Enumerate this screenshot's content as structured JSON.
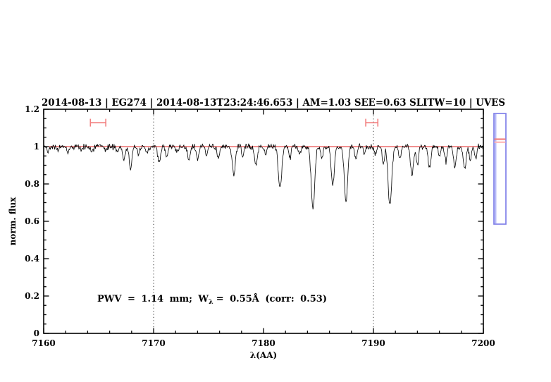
{
  "header": {
    "title": "2014-08-13 | EG274 | 2014-08-13T23:24:46.653 | AM=1.03  SEE=0.63  SLITW=10 | UVES",
    "color": "#1717cf"
  },
  "annotation": {
    "part1": "PWV = 1.14 mm; W",
    "sub": "λ",
    "part2": "= 0.55Å (corr: 0.53)",
    "color": "#1717cf"
  },
  "chart_data": {
    "type": "line",
    "title": "2014-08-13 | EG274 | 2014-08-13T23:24:46.653 | AM=1.03  SEE=0.63  SLITW=10 | UVES",
    "xlabel": "λ(AA)",
    "ylabel": "norm. flux",
    "xlim": [
      7160,
      7200
    ],
    "ylim": [
      0,
      1.2
    ],
    "x_tick_labels": [
      "7160",
      "7170",
      "7180",
      "7190",
      "7200"
    ],
    "x_major_ticks": [
      7160,
      7170,
      7180,
      7190,
      7200
    ],
    "x_minor_step": 2,
    "y_tick_labels": [
      "0",
      "0.2",
      "0.4",
      "0.6",
      "0.8",
      "1",
      "1.2"
    ],
    "y_major_ticks": [
      0,
      0.2,
      0.4,
      0.6,
      0.8,
      1.0,
      1.2
    ],
    "y_minor_step": 0.05,
    "grid": "off",
    "legend": "none",
    "continuum_level": 1.0,
    "continuum_color": "#e32222",
    "spectrum_color": "#000000",
    "guide_color": "#333333",
    "marker_color": "#f28080",
    "noise_sigma": 0.0075,
    "noise_seed": 42,
    "sample_step": 0.05,
    "dotted_guides_x": [
      7170,
      7190
    ],
    "range_markers": [
      {
        "x1": 7164.25,
        "x2": 7165.65,
        "y": 1.128
      },
      {
        "x1": 7189.3,
        "x2": 7190.4,
        "y": 1.128
      }
    ],
    "absorption_lines": [
      {
        "w": 7160.4,
        "d": 0.02,
        "s": 0.1
      },
      {
        "w": 7161.3,
        "d": 0.025,
        "s": 0.1
      },
      {
        "w": 7162.2,
        "d": 0.03,
        "s": 0.1
      },
      {
        "w": 7163.4,
        "d": 0.025,
        "s": 0.1
      },
      {
        "w": 7164.4,
        "d": 0.03,
        "s": 0.1
      },
      {
        "w": 7165.6,
        "d": 0.022,
        "s": 0.1
      },
      {
        "w": 7166.7,
        "d": 0.03,
        "s": 0.1
      },
      {
        "w": 7167.3,
        "d": 0.07,
        "s": 0.12
      },
      {
        "w": 7167.9,
        "d": 0.12,
        "s": 0.12
      },
      {
        "w": 7168.6,
        "d": 0.045,
        "s": 0.12
      },
      {
        "w": 7169.4,
        "d": 0.035,
        "s": 0.12
      },
      {
        "w": 7170.5,
        "d": 0.085,
        "s": 0.13
      },
      {
        "w": 7171.2,
        "d": 0.05,
        "s": 0.1
      },
      {
        "w": 7172.1,
        "d": 0.03,
        "s": 0.1
      },
      {
        "w": 7173.2,
        "d": 0.075,
        "s": 0.12
      },
      {
        "w": 7174.0,
        "d": 0.065,
        "s": 0.12
      },
      {
        "w": 7174.8,
        "d": 0.04,
        "s": 0.1
      },
      {
        "w": 7175.9,
        "d": 0.065,
        "s": 0.12
      },
      {
        "w": 7177.3,
        "d": 0.15,
        "s": 0.14
      },
      {
        "w": 7178.1,
        "d": 0.05,
        "s": 0.1
      },
      {
        "w": 7179.3,
        "d": 0.095,
        "s": 0.13
      },
      {
        "w": 7180.2,
        "d": 0.04,
        "s": 0.1
      },
      {
        "w": 7181.5,
        "d": 0.22,
        "s": 0.15
      },
      {
        "w": 7182.4,
        "d": 0.06,
        "s": 0.1
      },
      {
        "w": 7183.3,
        "d": 0.04,
        "s": 0.1
      },
      {
        "w": 7184.5,
        "d": 0.33,
        "s": 0.16
      },
      {
        "w": 7185.3,
        "d": 0.07,
        "s": 0.1
      },
      {
        "w": 7186.3,
        "d": 0.21,
        "s": 0.14
      },
      {
        "w": 7187.5,
        "d": 0.3,
        "s": 0.15
      },
      {
        "w": 7188.4,
        "d": 0.07,
        "s": 0.1
      },
      {
        "w": 7189.2,
        "d": 0.035,
        "s": 0.1
      },
      {
        "w": 7190.2,
        "d": 0.04,
        "s": 0.1
      },
      {
        "w": 7190.9,
        "d": 0.09,
        "s": 0.1
      },
      {
        "w": 7191.5,
        "d": 0.32,
        "s": 0.16
      },
      {
        "w": 7192.4,
        "d": 0.07,
        "s": 0.1
      },
      {
        "w": 7193.5,
        "d": 0.15,
        "s": 0.13
      },
      {
        "w": 7194.0,
        "d": 0.1,
        "s": 0.1
      },
      {
        "w": 7195.1,
        "d": 0.12,
        "s": 0.13
      },
      {
        "w": 7196.0,
        "d": 0.05,
        "s": 0.1
      },
      {
        "w": 7196.6,
        "d": 0.08,
        "s": 0.1
      },
      {
        "w": 7197.4,
        "d": 0.11,
        "s": 0.12
      },
      {
        "w": 7198.3,
        "d": 0.12,
        "s": 0.13
      },
      {
        "w": 7198.8,
        "d": 0.07,
        "s": 0.1
      },
      {
        "w": 7199.3,
        "d": 0.06,
        "s": 0.1
      }
    ]
  },
  "overview_panel": {
    "border_color": "#8080e8",
    "inner_edge_color": "#b8bcf8",
    "line1_color": "#f08080",
    "line2_color": "#ffb8b8"
  }
}
